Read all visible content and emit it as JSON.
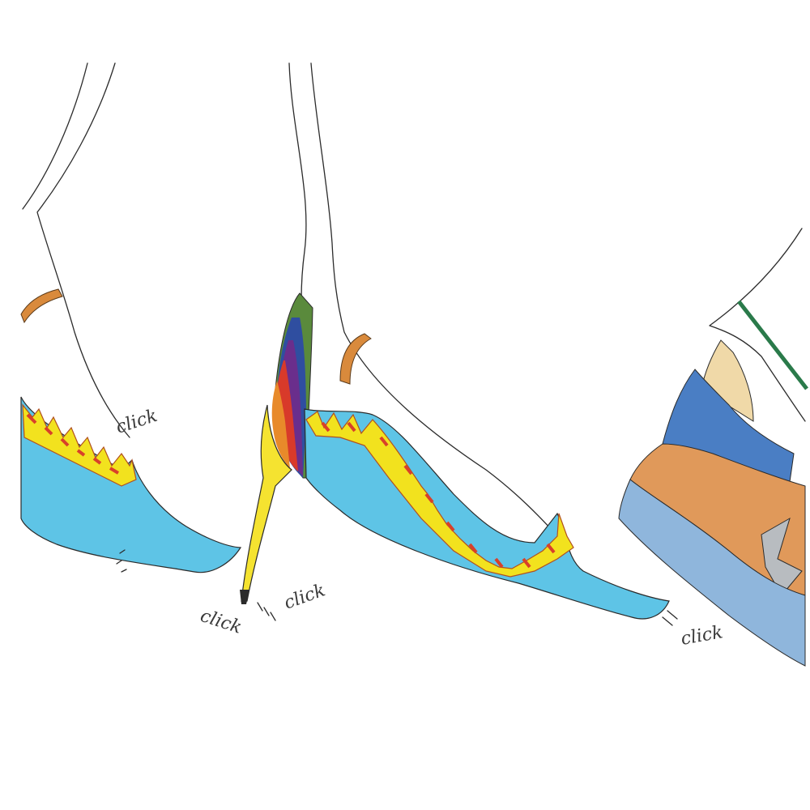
{
  "sound_words": {
    "left_shoe": "click",
    "heel_tip": "click",
    "middle_shoe": "click",
    "right_toe": "click"
  },
  "colors": {
    "shoe_blue": "#5ec4e6",
    "trim_yellow": "#f2e21e",
    "trim_red": "#d8402a",
    "heel_yellow": "#f5e330",
    "strap_orange": "#d98a3c",
    "heel_green": "#5a8a3c",
    "heel_navy": "#2f4ea0",
    "heel_purple": "#6a2e8c",
    "heel_red": "#d83a2a",
    "heel_orange": "#e88a2a",
    "sneaker_orange": "#e0995a",
    "sneaker_blue": "#4a7ec4",
    "sneaker_sole": "#8fb6dc",
    "sock_tan": "#f0d9a8",
    "lace_green": "#2a7a4a",
    "sneaker_gray": "#b8bcc0"
  }
}
